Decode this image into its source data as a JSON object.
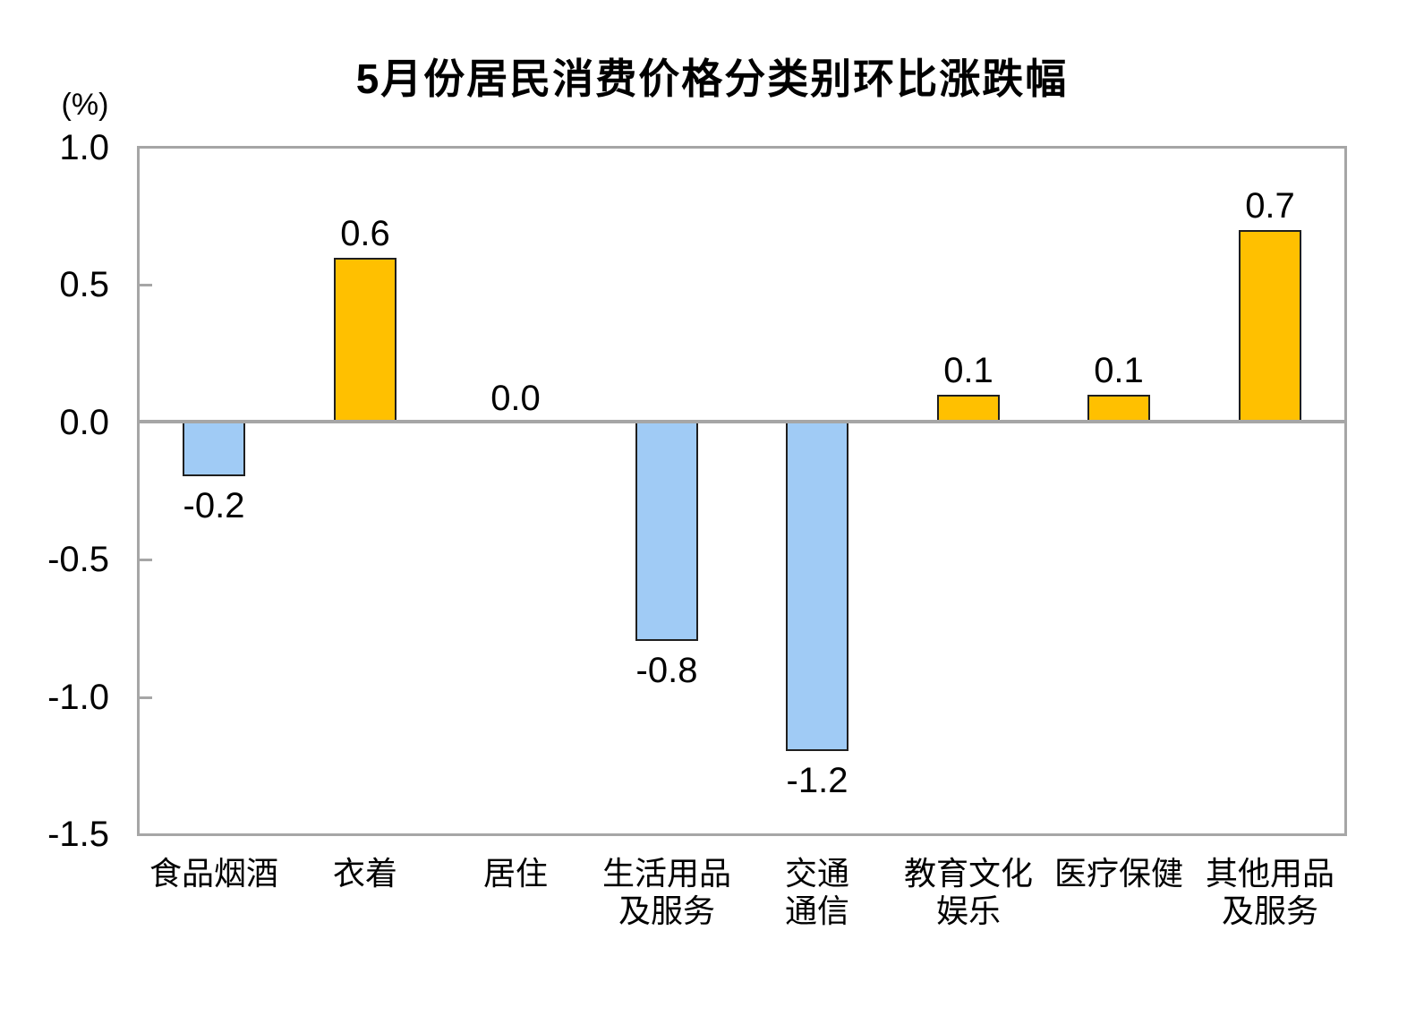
{
  "chart": {
    "title": "5月份居民消费价格分类别环比涨跌幅",
    "unit_label": "(%)"
  },
  "chart_data": {
    "type": "bar",
    "title": "5月份居民消费价格分类别环比涨跌幅",
    "unit": "%",
    "categories": [
      "食品烟酒",
      "衣着",
      "居住",
      "生活用品及服务",
      "交通通信",
      "教育文化娱乐",
      "医疗保健",
      "其他用品及服务"
    ],
    "category_display_lines": [
      [
        "食品烟酒"
      ],
      [
        "衣着"
      ],
      [
        "居住"
      ],
      [
        "生活用品",
        "及服务"
      ],
      [
        "交通",
        "通信"
      ],
      [
        "教育文化",
        "娱乐"
      ],
      [
        "医疗保健"
      ],
      [
        "其他用品",
        "及服务"
      ]
    ],
    "values": [
      -0.2,
      0.6,
      0.0,
      -0.8,
      -1.2,
      0.1,
      0.1,
      0.7
    ],
    "value_labels": [
      "-0.2",
      "0.6",
      "0.0",
      "-0.8",
      "-1.2",
      "0.1",
      "0.1",
      "0.7"
    ],
    "ylim": [
      -1.5,
      1.0
    ],
    "ytick_labels": [
      "1.0",
      "0.5",
      "0.0",
      "-0.5",
      "-1.0",
      "-1.5"
    ],
    "ytick_values": [
      1.0,
      0.5,
      0.0,
      -0.5,
      -1.0,
      -1.5
    ],
    "grid": "off",
    "legend": "none",
    "colors": {
      "positive_bar": "#FFC000",
      "negative_bar": "#A0CBF5",
      "bar_border": "#1F1F1F",
      "axis_gray": "#A6A6A6",
      "text": "#000000"
    }
  }
}
